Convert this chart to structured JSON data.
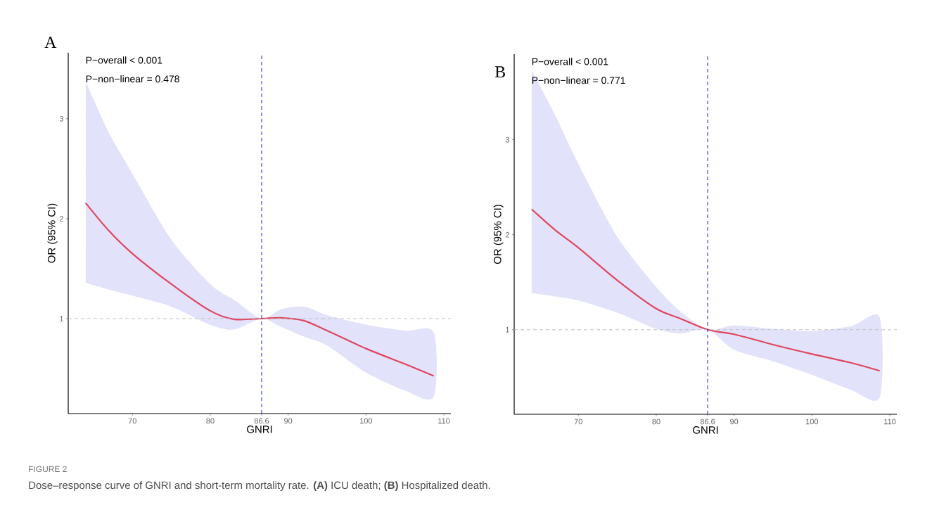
{
  "chart_data": [
    {
      "type": "line",
      "title": "A",
      "xlabel": "GNRI",
      "ylabel": "OR (95% CI)",
      "xlim": [
        61.76,
        110.9
      ],
      "ylim": [
        0.05,
        3.66
      ],
      "xticks": [
        70,
        80,
        86.6,
        90,
        100,
        110
      ],
      "yticks": [
        1,
        2,
        3
      ],
      "series": [
        {
          "color": "#e0465f",
          "x": [
            64,
            67,
            70,
            75,
            80,
            83,
            86.6,
            89,
            92,
            95,
            100,
            105,
            108.7
          ],
          "values": [
            2.157,
            1.877,
            1.65,
            1.345,
            1.078,
            0.994,
            1,
            1.008,
            0.98,
            0.88,
            0.7,
            0.546,
            0.426
          ],
          "lower": [
            1.359,
            1.29,
            1.23,
            1.12,
            0.938,
            0.89,
            1,
            0.92,
            0.82,
            0.73,
            0.46,
            0.28,
            0.218
          ],
          "upper": [
            3.375,
            2.857,
            2.45,
            1.79,
            1.345,
            1.19,
            1,
            1.092,
            1.12,
            1.036,
            0.94,
            0.88,
            0.86
          ]
        }
      ],
      "ref_lines": [
        {
          "axis": "y",
          "value": 1,
          "color": "#bbbbbb",
          "line_style": "dashed"
        },
        {
          "axis": "x",
          "value": 86.6,
          "color": "#0000ee",
          "line_style": "dashed"
        }
      ],
      "annotations": [
        "P−overall < 0.001",
        "P−non−linear = 0.478",
        "FIGURE 2",
        "Dose–response curve of GNRI and short-term mortality rate. **(A)** ICU death; **(B)** Hospitalized death."
      ]
    },
    {
      "type": "line",
      "title": "B",
      "xlabel": "GNRI",
      "ylabel": "OR (95% CI)",
      "xlim": [
        61.76,
        110.9
      ],
      "ylim": [
        0.11,
        3.9
      ],
      "xticks": [
        70,
        80,
        86.6,
        90,
        100,
        110
      ],
      "yticks": [
        1,
        2,
        3
      ],
      "series": [
        {
          "color": "#e0465f",
          "x": [
            64,
            67,
            70,
            75,
            80,
            83,
            86.6,
            90,
            95,
            100,
            105,
            108.7
          ],
          "values": [
            2.268,
            2.05,
            1.863,
            1.52,
            1.222,
            1.12,
            1,
            0.952,
            0.843,
            0.744,
            0.652,
            0.567
          ],
          "lower": [
            1.385,
            1.35,
            1.308,
            1.18,
            1.009,
            0.96,
            1,
            0.79,
            0.667,
            0.524,
            0.368,
            0.288
          ],
          "upper": [
            3.73,
            3.26,
            2.746,
            1.977,
            1.45,
            1.2,
            1,
            1.045,
            1.009,
            0.986,
            1.037,
            1.128
          ]
        }
      ],
      "ref_lines": [
        {
          "axis": "y",
          "value": 1,
          "color": "#bbbbbb",
          "line_style": "dashed"
        },
        {
          "axis": "x",
          "value": 86.6,
          "color": "#0000ee",
          "line_style": "dashed"
        }
      ],
      "annotations": [
        "P−overall < 0.001",
        "P−non−linear = 0.771"
      ]
    }
  ]
}
